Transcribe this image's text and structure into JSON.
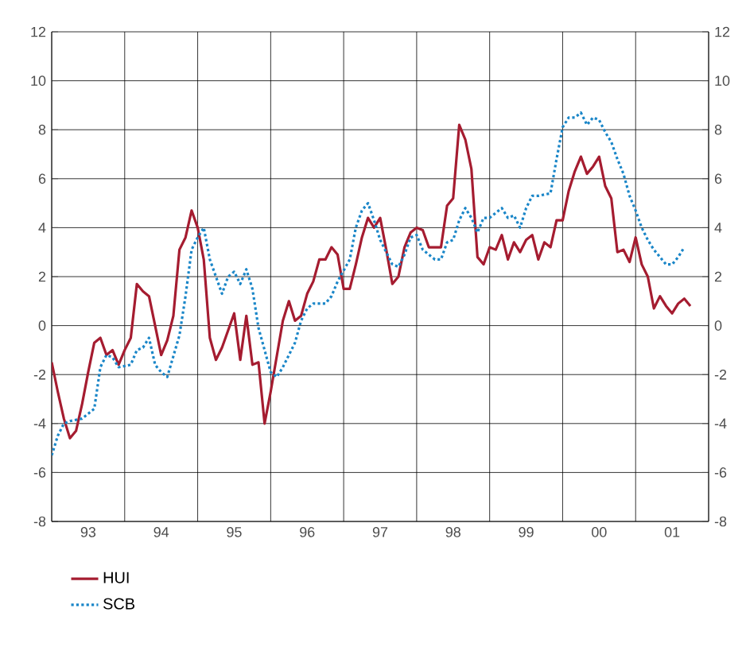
{
  "chart_data": {
    "type": "line",
    "xlim": [
      "1993",
      "2002"
    ],
    "xticks": [
      {
        "value": "1993",
        "label": null
      },
      {
        "value": "1994",
        "label": null
      },
      {
        "value": "1995",
        "label": null
      },
      {
        "value": "1996",
        "label": null
      },
      {
        "value": "1997",
        "label": null
      },
      {
        "value": "1998",
        "label": null
      },
      {
        "value": "1999",
        "label": null
      },
      {
        "value": "2000",
        "label": null
      },
      {
        "value": "2001",
        "label": null
      },
      {
        "value": "2002",
        "label": null
      },
      {
        "value": "1993-07",
        "label": "93"
      },
      {
        "value": "1994-07",
        "label": "94"
      },
      {
        "value": "1995-07",
        "label": "95"
      },
      {
        "value": "1996-07",
        "label": "96"
      },
      {
        "value": "1997-07",
        "label": "97"
      },
      {
        "value": "1998-07",
        "label": "98"
      },
      {
        "value": "1999-07",
        "label": "99"
      },
      {
        "value": "2000-07",
        "label": "00"
      },
      {
        "value": "2001-07",
        "label": "01"
      }
    ],
    "ylim": [
      -8,
      12
    ],
    "yticks": [
      -8,
      -6,
      -4,
      -2,
      0,
      2,
      4,
      6,
      8,
      10,
      12
    ],
    "y2lim": [
      -8,
      12
    ],
    "y2ticks": [
      -8,
      -6,
      -4,
      -2,
      0,
      2,
      4,
      6,
      8,
      10,
      12
    ],
    "grid": true,
    "legend": "bottom",
    "series": [
      {
        "name": "HUI",
        "color": "#a51c30",
        "line_style": "solid",
        "x": [
          "1993-01",
          "1993-02",
          "1993-03",
          "1993-04",
          "1993-05",
          "1993-06",
          "1993-07",
          "1993-08",
          "1993-09",
          "1993-10",
          "1993-11",
          "1993-12",
          "1994-01",
          "1994-02",
          "1994-03",
          "1994-04",
          "1994-05",
          "1994-06",
          "1994-07",
          "1994-08",
          "1994-09",
          "1994-10",
          "1994-11",
          "1994-12",
          "1995-01",
          "1995-02",
          "1995-03",
          "1995-04",
          "1995-05",
          "1995-07",
          "1995-08",
          "1995-09",
          "1995-10",
          "1995-11",
          "1995-12",
          "1996-01",
          "1996-03",
          "1996-04",
          "1996-05",
          "1996-06",
          "1996-07",
          "1996-08",
          "1996-09",
          "1996-10",
          "1996-11",
          "1996-12",
          "1997-01",
          "1997-02",
          "1997-03",
          "1997-04",
          "1997-05",
          "1997-06",
          "1997-07",
          "1997-08",
          "1997-09",
          "1997-10",
          "1997-11",
          "1997-12",
          "1998-01",
          "1998-02",
          "1998-03",
          "1998-04",
          "1998-05",
          "1998-06",
          "1998-07",
          "1998-08",
          "1998-09",
          "1998-10",
          "1998-11",
          "1998-12",
          "1999-01",
          "1999-02",
          "1999-03",
          "1999-04",
          "1999-05",
          "1999-06",
          "1999-07",
          "1999-08",
          "1999-09",
          "1999-10",
          "1999-11",
          "1999-12",
          "2000-01",
          "2000-02",
          "2000-03",
          "2000-04",
          "2000-05",
          "2000-06",
          "2000-07",
          "2000-08",
          "2000-09",
          "2000-10",
          "2000-11",
          "2000-12",
          "2001-01",
          "2001-02",
          "2001-03",
          "2001-04",
          "2001-05",
          "2001-06",
          "2001-07",
          "2001-08",
          "2001-09",
          "2001-10"
        ],
        "values": [
          -1.5,
          -2.7,
          -3.8,
          -4.6,
          -4.3,
          -3.2,
          -1.9,
          -0.7,
          -0.5,
          -1.2,
          -1.0,
          -1.6,
          -1.0,
          -0.5,
          1.7,
          1.4,
          1.2,
          0.0,
          -1.2,
          -0.6,
          0.4,
          3.1,
          3.6,
          4.7,
          4.0,
          2.7,
          -0.5,
          -1.4,
          -0.9,
          0.5,
          -1.4,
          0.4,
          -1.6,
          -1.5,
          -4.0,
          -2.7,
          0.2,
          1.0,
          0.2,
          0.4,
          1.3,
          1.8,
          2.7,
          2.7,
          3.2,
          2.9,
          1.5,
          1.5,
          2.5,
          3.6,
          4.4,
          4.0,
          4.4,
          3.1,
          1.7,
          2.0,
          3.2,
          3.8,
          4.0,
          3.9,
          3.2,
          3.2,
          3.2,
          4.9,
          5.2,
          8.2,
          7.6,
          6.4,
          2.8,
          2.5,
          3.2,
          3.1,
          3.7,
          2.7,
          3.4,
          3.0,
          3.5,
          3.7,
          2.7,
          3.4,
          3.2,
          4.3,
          4.3,
          5.5,
          6.3,
          6.9,
          6.2,
          6.5,
          6.9,
          5.7,
          5.2,
          3.0,
          3.1,
          2.6,
          3.6,
          2.5,
          2.0,
          0.7,
          1.2,
          0.8,
          0.5,
          0.9,
          1.1,
          0.8
        ]
      },
      {
        "name": "SCB",
        "color": "#1a86c8",
        "line_style": "dotted",
        "x": [
          "1993-01",
          "1993-02",
          "1993-03",
          "1993-04",
          "1993-06",
          "1993-07",
          "1993-08",
          "1993-09",
          "1993-10",
          "1993-11",
          "1993-12",
          "1994-02",
          "1994-03",
          "1994-04",
          "1994-05",
          "1994-06",
          "1994-07",
          "1994-08",
          "1994-10",
          "1994-11",
          "1994-12",
          "1995-01",
          "1995-02",
          "1995-03",
          "1995-04",
          "1995-05",
          "1995-06",
          "1995-07",
          "1995-08",
          "1995-09",
          "1995-10",
          "1995-11",
          "1996-01",
          "1996-02",
          "1996-03",
          "1996-05",
          "1996-06",
          "1996-07",
          "1996-08",
          "1996-10",
          "1996-11",
          "1996-12",
          "1997-02",
          "1997-03",
          "1997-04",
          "1997-05",
          "1997-06",
          "1997-07",
          "1997-09",
          "1997-10",
          "1997-11",
          "1997-12",
          "1998-01",
          "1998-02",
          "1998-04",
          "1998-05",
          "1998-06",
          "1998-07",
          "1998-08",
          "1998-09",
          "1998-10",
          "1998-11",
          "1998-12",
          "1999-01",
          "1999-03",
          "1999-04",
          "1999-05",
          "1999-06",
          "1999-07",
          "1999-08",
          "1999-09",
          "1999-11",
          "1999-12",
          "2000-01",
          "2000-02",
          "2000-03",
          "2000-04",
          "2000-05",
          "2000-06",
          "2000-07",
          "2000-08",
          "2000-09",
          "2000-10",
          "2000-11",
          "2000-12",
          "2001-01",
          "2001-02",
          "2001-03",
          "2001-04",
          "2001-05",
          "2001-06",
          "2001-07",
          "2001-08",
          "2001-09"
        ],
        "values": [
          -5.3,
          -4.5,
          -4.0,
          -3.9,
          -3.8,
          -3.6,
          -3.4,
          -1.7,
          -1.2,
          -1.3,
          -1.7,
          -1.6,
          -1.0,
          -0.9,
          -0.5,
          -1.6,
          -1.9,
          -2.1,
          -0.4,
          1.2,
          3.1,
          3.6,
          4.0,
          2.7,
          2.0,
          1.3,
          2.0,
          2.2,
          1.7,
          2.3,
          1.5,
          -0.1,
          -1.9,
          -2.1,
          -1.7,
          -0.7,
          0.2,
          0.7,
          0.9,
          0.9,
          1.2,
          1.8,
          2.7,
          4.0,
          4.7,
          5.0,
          4.3,
          3.5,
          2.5,
          2.4,
          2.9,
          3.6,
          3.7,
          3.1,
          2.7,
          2.7,
          3.4,
          3.5,
          4.3,
          4.8,
          4.4,
          3.8,
          4.4,
          4.4,
          4.8,
          4.4,
          4.5,
          4.0,
          4.8,
          5.3,
          5.3,
          5.4,
          6.8,
          8.1,
          8.5,
          8.5,
          8.7,
          8.2,
          8.5,
          8.4,
          7.9,
          7.5,
          6.8,
          6.2,
          5.3,
          4.7,
          4.0,
          3.5,
          3.1,
          2.8,
          2.5,
          2.5,
          2.8,
          3.2
        ]
      }
    ]
  }
}
